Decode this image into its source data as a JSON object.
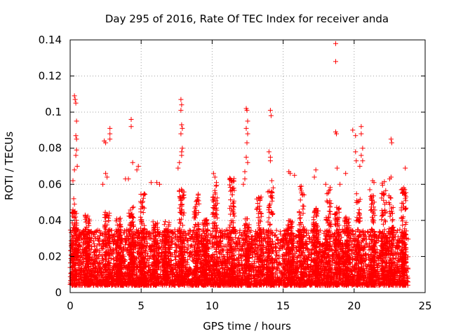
{
  "chart_data": {
    "type": "scatter",
    "title": "Day 295 of 2016, Rate Of TEC Index for receiver anda",
    "xlabel": "GPS time / hours",
    "ylabel": "ROTI / TECUs",
    "xlim": [
      0,
      25
    ],
    "ylim": [
      0,
      0.14
    ],
    "xticks": [
      "0",
      "5",
      "10",
      "15",
      "20",
      "25"
    ],
    "yticks": [
      "0",
      "0.02",
      "0.04",
      "0.06",
      "0.08",
      "0.1",
      "0.12",
      "0.14"
    ],
    "grid": true,
    "marker": "+",
    "color": "#ff0000",
    "series": [
      {
        "name": "ROTI",
        "points": [
          [
            0.3,
            0.109
          ],
          [
            0.35,
            0.107
          ],
          [
            0.4,
            0.105
          ],
          [
            0.45,
            0.095
          ],
          [
            0.4,
            0.087
          ],
          [
            0.45,
            0.085
          ],
          [
            0.45,
            0.079
          ],
          [
            0.4,
            0.076
          ],
          [
            0.5,
            0.07
          ],
          [
            0.3,
            0.068
          ],
          [
            0.2,
            0.062
          ],
          [
            0.25,
            0.052
          ],
          [
            0.3,
            0.049
          ],
          [
            2.4,
            0.084
          ],
          [
            2.5,
            0.083
          ],
          [
            2.8,
            0.091
          ],
          [
            2.8,
            0.088
          ],
          [
            2.8,
            0.085
          ],
          [
            2.5,
            0.066
          ],
          [
            2.6,
            0.064
          ],
          [
            2.3,
            0.06
          ],
          [
            4.3,
            0.096
          ],
          [
            4.3,
            0.092
          ],
          [
            4.4,
            0.072
          ],
          [
            4.8,
            0.07
          ],
          [
            4.7,
            0.068
          ],
          [
            4.1,
            0.063
          ],
          [
            3.9,
            0.063
          ],
          [
            7.8,
            0.107
          ],
          [
            7.85,
            0.104
          ],
          [
            7.8,
            0.101
          ],
          [
            7.85,
            0.093
          ],
          [
            7.9,
            0.091
          ],
          [
            7.8,
            0.088
          ],
          [
            7.9,
            0.08
          ],
          [
            7.85,
            0.078
          ],
          [
            7.85,
            0.076
          ],
          [
            7.7,
            0.072
          ],
          [
            7.6,
            0.069
          ],
          [
            6.1,
            0.061
          ],
          [
            6.3,
            0.06
          ],
          [
            5.7,
            0.061
          ],
          [
            10.1,
            0.066
          ],
          [
            10.2,
            0.064
          ],
          [
            10.3,
            0.061
          ],
          [
            11.3,
            0.063
          ],
          [
            11.5,
            0.062
          ],
          [
            12.4,
            0.102
          ],
          [
            12.45,
            0.101
          ],
          [
            12.5,
            0.095
          ],
          [
            12.4,
            0.091
          ],
          [
            12.5,
            0.088
          ],
          [
            12.45,
            0.083
          ],
          [
            12.4,
            0.075
          ],
          [
            12.5,
            0.072
          ],
          [
            12.3,
            0.067
          ],
          [
            12.3,
            0.063
          ],
          [
            12.2,
            0.06
          ],
          [
            14.1,
            0.101
          ],
          [
            14.15,
            0.098
          ],
          [
            14.0,
            0.078
          ],
          [
            14.1,
            0.075
          ],
          [
            14.1,
            0.073
          ],
          [
            14.2,
            0.062
          ],
          [
            14.3,
            0.058
          ],
          [
            15.4,
            0.067
          ],
          [
            15.5,
            0.066
          ],
          [
            15.8,
            0.065
          ],
          [
            17.3,
            0.068
          ],
          [
            17.2,
            0.064
          ],
          [
            18.0,
            0.06
          ],
          [
            18.7,
            0.138
          ],
          [
            18.7,
            0.128
          ],
          [
            18.7,
            0.089
          ],
          [
            18.75,
            0.088
          ],
          [
            18.8,
            0.069
          ],
          [
            19.4,
            0.066
          ],
          [
            19.0,
            0.06
          ],
          [
            19.9,
            0.09
          ],
          [
            20.1,
            0.087
          ],
          [
            20.1,
            0.078
          ],
          [
            20.15,
            0.073
          ],
          [
            20.5,
            0.092
          ],
          [
            20.5,
            0.088
          ],
          [
            20.6,
            0.08
          ],
          [
            20.5,
            0.076
          ],
          [
            20.6,
            0.073
          ],
          [
            20.4,
            0.07
          ],
          [
            21.3,
            0.062
          ],
          [
            21.4,
            0.061
          ],
          [
            21.1,
            0.057
          ],
          [
            22.6,
            0.085
          ],
          [
            22.65,
            0.083
          ],
          [
            22.5,
            0.063
          ],
          [
            22.6,
            0.064
          ],
          [
            23.6,
            0.069
          ],
          [
            23.5,
            0.058
          ],
          [
            23.4,
            0.055
          ]
        ]
      }
    ],
    "bulk_band": {
      "floor": 0.004,
      "typical_max": 0.035
    },
    "spike_times": [
      0.3,
      1.2,
      2.6,
      3.4,
      4.3,
      5.1,
      6.0,
      6.8,
      7.85,
      8.9,
      9.5,
      10.2,
      11.4,
      12.45,
      13.3,
      14.1,
      15.5,
      16.3,
      17.3,
      18.2,
      18.8,
      19.5,
      20.3,
      21.3,
      22.1,
      22.6,
      23.5
    ],
    "time_end": 23.8
  }
}
